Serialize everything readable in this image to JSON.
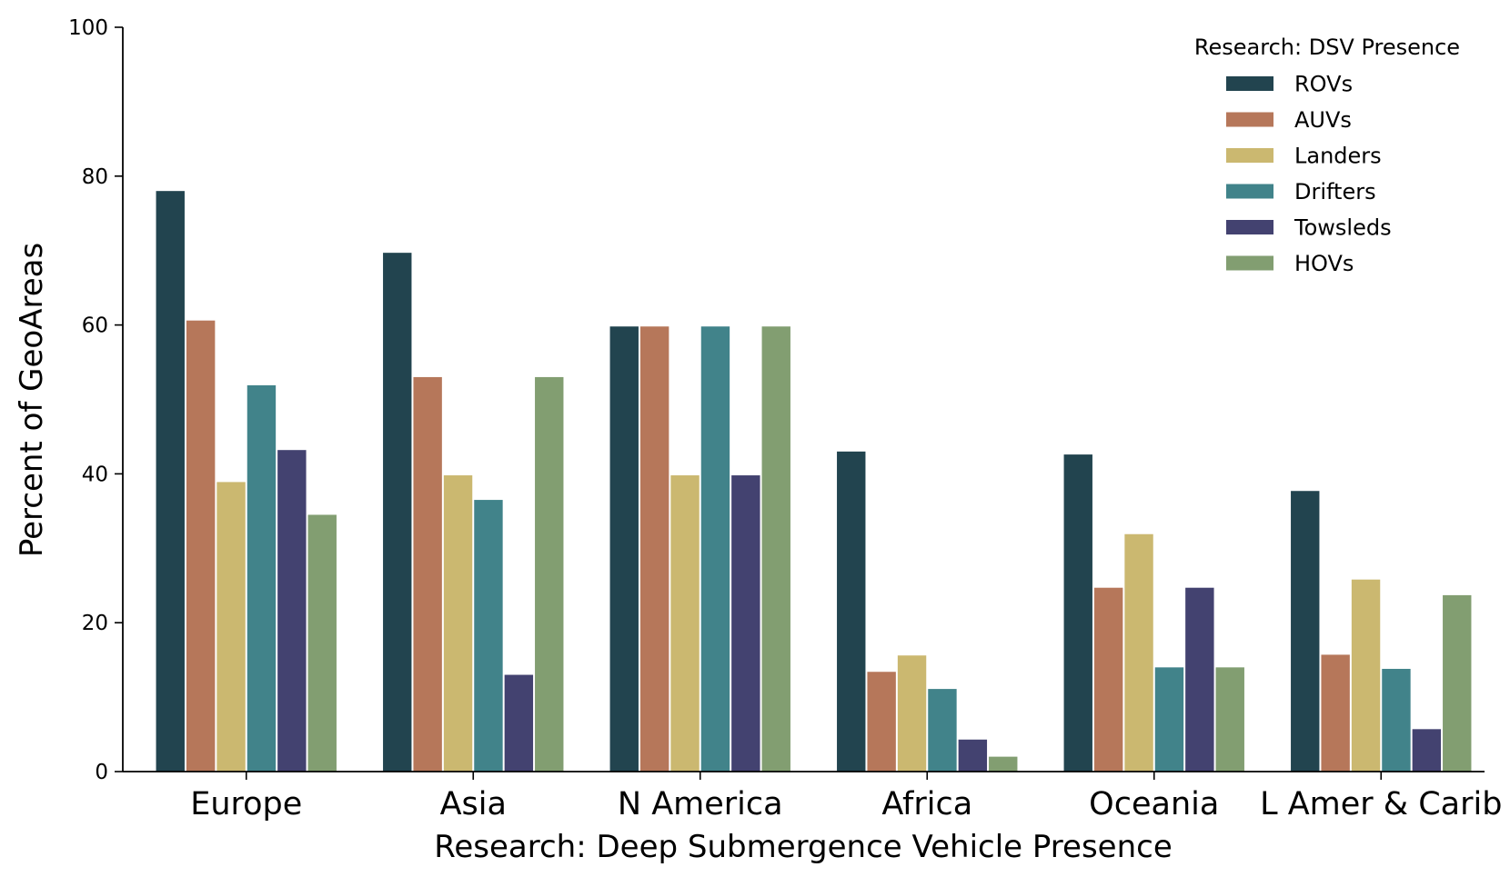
{
  "chart_data": {
    "type": "bar",
    "title": "",
    "xlabel": "Research: Deep Submergence Vehicle Presence",
    "ylabel": "Percent of GeoAreas",
    "ylim": [
      0,
      100
    ],
    "yticks": [
      0,
      20,
      40,
      60,
      80,
      100
    ],
    "grid": false,
    "legend": {
      "title": "Research: DSV Presence",
      "placement": "top-right"
    },
    "categories": [
      "Europe",
      "Asia",
      "N America",
      "Africa",
      "Oceania",
      "L Amer & Carib"
    ],
    "series": [
      {
        "name": "ROVs",
        "color": "#22444f",
        "values": [
          78.0,
          69.7,
          59.8,
          43.0,
          42.6,
          37.7
        ]
      },
      {
        "name": "AUVs",
        "color": "#b6775a",
        "values": [
          60.6,
          53.0,
          59.8,
          13.4,
          24.7,
          15.7
        ]
      },
      {
        "name": "Landers",
        "color": "#cbb870",
        "values": [
          38.9,
          39.8,
          39.8,
          15.6,
          31.9,
          25.8
        ]
      },
      {
        "name": "Drifters",
        "color": "#41838a",
        "values": [
          51.9,
          36.5,
          59.8,
          11.1,
          14.0,
          13.8
        ]
      },
      {
        "name": "Towsleds",
        "color": "#434270",
        "values": [
          43.2,
          13.0,
          39.8,
          4.3,
          24.7,
          5.7
        ]
      },
      {
        "name": "HOVs",
        "color": "#829e71",
        "values": [
          34.5,
          53.0,
          59.8,
          2.0,
          14.0,
          23.7
        ]
      }
    ]
  }
}
